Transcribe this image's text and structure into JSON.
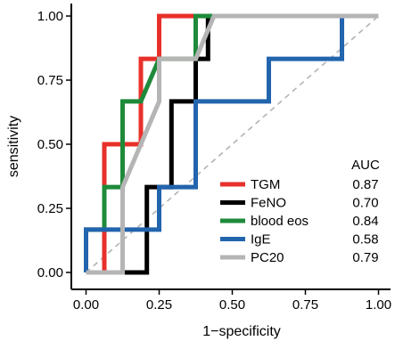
{
  "chart_data": {
    "type": "line",
    "title": "",
    "xlabel": "1−specificity",
    "ylabel": "sensitivity",
    "xlim": [
      0,
      1
    ],
    "ylim": [
      0,
      1
    ],
    "x_ticks": [
      "0.00",
      "0.25",
      "0.50",
      "0.75",
      "1.00"
    ],
    "y_ticks": [
      "0.00",
      "0.25",
      "0.50",
      "0.75",
      "1.00"
    ],
    "grid": false,
    "reference_line": {
      "style": "dashed",
      "color": "#b3b3b3",
      "from": [
        0,
        0
      ],
      "to": [
        1,
        1
      ]
    },
    "legend": {
      "placement": "bottom-right",
      "value_header": "AUC"
    },
    "series": [
      {
        "name": "TGM",
        "auc": "0.87",
        "color": "#e8302a",
        "points": [
          [
            0,
            0
          ],
          [
            0.0625,
            0
          ],
          [
            0.0625,
            0.5
          ],
          [
            0.1875,
            0.5
          ],
          [
            0.1875,
            0.833
          ],
          [
            0.25,
            0.833
          ],
          [
            0.25,
            1
          ],
          [
            1,
            1
          ]
        ]
      },
      {
        "name": "FeNO",
        "auc": "0.70",
        "color": "#000000",
        "points": [
          [
            0,
            0
          ],
          [
            0.208,
            0
          ],
          [
            0.208,
            0.333
          ],
          [
            0.292,
            0.333
          ],
          [
            0.292,
            0.667
          ],
          [
            0.375,
            0.667
          ],
          [
            0.375,
            0.833
          ],
          [
            0.417,
            0.833
          ],
          [
            0.417,
            1
          ],
          [
            1,
            1
          ]
        ]
      },
      {
        "name": "blood eos",
        "auc": "0.84",
        "color": "#1e8a3a",
        "points": [
          [
            0,
            0
          ],
          [
            0,
            0.167
          ],
          [
            0.0625,
            0.167
          ],
          [
            0.0625,
            0.333
          ],
          [
            0.125,
            0.333
          ],
          [
            0.125,
            0.667
          ],
          [
            0.1875,
            0.667
          ],
          [
            0.25,
            0.833
          ],
          [
            0.375,
            0.833
          ],
          [
            0.375,
            1
          ],
          [
            1,
            1
          ]
        ]
      },
      {
        "name": "IgE",
        "auc": "0.58",
        "color": "#2264ad",
        "points": [
          [
            0,
            0
          ],
          [
            0,
            0.167
          ],
          [
            0.25,
            0.167
          ],
          [
            0.25,
            0.333
          ],
          [
            0.375,
            0.333
          ],
          [
            0.375,
            0.667
          ],
          [
            0.625,
            0.667
          ],
          [
            0.625,
            0.833
          ],
          [
            0.875,
            0.833
          ],
          [
            0.875,
            1
          ],
          [
            1,
            1
          ]
        ]
      },
      {
        "name": "PC20",
        "auc": "0.79",
        "color": "#b5b5b5",
        "points": [
          [
            0,
            0
          ],
          [
            0.125,
            0
          ],
          [
            0.125,
            0.333
          ],
          [
            0.1875,
            0.5
          ],
          [
            0.25,
            0.667
          ],
          [
            0.25,
            0.833
          ],
          [
            0.375,
            0.833
          ],
          [
            0.4375,
            1
          ],
          [
            1,
            1
          ]
        ]
      }
    ]
  }
}
